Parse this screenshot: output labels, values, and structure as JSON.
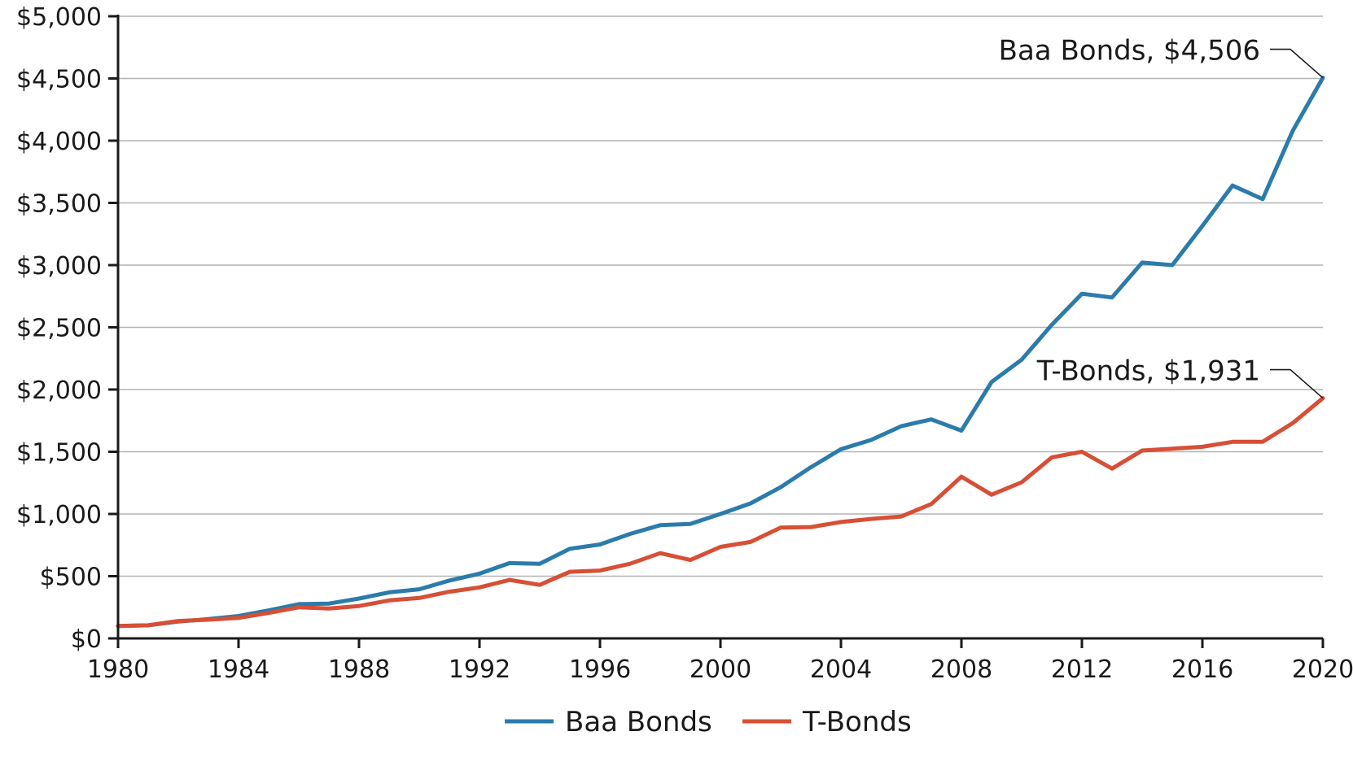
{
  "chart_data": {
    "type": "line",
    "title": "",
    "xlabel": "",
    "ylabel": "",
    "xlim": [
      1980,
      2020
    ],
    "ylim": [
      0,
      5000
    ],
    "x_ticks": [
      1980,
      1984,
      1988,
      1992,
      1996,
      2000,
      2004,
      2008,
      2012,
      2016,
      2020
    ],
    "x_tick_labels": [
      "1980",
      "1984",
      "1988",
      "1992",
      "1996",
      "2000",
      "2004",
      "2008",
      "2012",
      "2016",
      "2020"
    ],
    "y_ticks": [
      0,
      500,
      1000,
      1500,
      2000,
      2500,
      3000,
      3500,
      4000,
      4500,
      5000
    ],
    "y_tick_labels": [
      "$0",
      "$500",
      "$1,000",
      "$1,500",
      "$2,000",
      "$2,500",
      "$3,000",
      "$3,500",
      "$4,000",
      "$4,500",
      "$5,000"
    ],
    "grid": "horizontal",
    "legend": {
      "position": "bottom-center",
      "entries": [
        "Baa Bonds",
        "T-Bonds"
      ]
    },
    "x": [
      1980,
      1981,
      1982,
      1983,
      1984,
      1985,
      1986,
      1987,
      1988,
      1989,
      1990,
      1991,
      1992,
      1993,
      1994,
      1995,
      1996,
      1997,
      1998,
      1999,
      2000,
      2001,
      2002,
      2003,
      2004,
      2005,
      2006,
      2007,
      2008,
      2009,
      2010,
      2011,
      2012,
      2013,
      2014,
      2015,
      2016,
      2017,
      2018,
      2019,
      2020
    ],
    "series": [
      {
        "name": "Baa Bonds",
        "color": "#2b7bab",
        "values": [
          100,
          105,
          135,
          155,
          180,
          225,
          275,
          280,
          320,
          370,
          395,
          465,
          520,
          605,
          600,
          720,
          755,
          840,
          910,
          920,
          1000,
          1085,
          1215,
          1375,
          1520,
          1595,
          1705,
          1760,
          1670,
          2060,
          2240,
          2520,
          2770,
          2740,
          3020,
          3000,
          3315,
          3640,
          3530,
          4080,
          4506
        ]
      },
      {
        "name": "T-Bonds",
        "color": "#d64f36",
        "values": [
          100,
          105,
          140,
          150,
          165,
          205,
          250,
          240,
          260,
          305,
          325,
          375,
          410,
          470,
          430,
          535,
          545,
          600,
          685,
          630,
          735,
          775,
          890,
          895,
          935,
          960,
          980,
          1080,
          1300,
          1155,
          1255,
          1455,
          1500,
          1365,
          1510,
          1525,
          1540,
          1580,
          1580,
          1730,
          1931
        ]
      }
    ],
    "annotations": [
      {
        "series": "Baa Bonds",
        "x": 2020,
        "y": 4506,
        "text": "Baa Bonds, $4,506"
      },
      {
        "series": "T-Bonds",
        "x": 2020,
        "y": 1931,
        "text": "T-Bonds, $1,931"
      }
    ]
  }
}
